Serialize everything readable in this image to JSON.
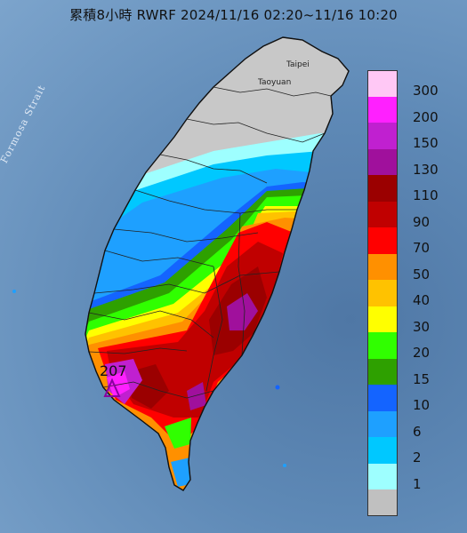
{
  "title": "累積8小時 RWRF 2024/11/16 02:20~11/16 10:20",
  "labels": {
    "strait": "Formosa Strait",
    "taipei": "Taipei",
    "taoyuan": "Taoyuan",
    "max_value": "207"
  },
  "legend": [
    {
      "label": "300",
      "color": "#ffc8f5"
    },
    {
      "label": "200",
      "color": "#ff20ff"
    },
    {
      "label": "150",
      "color": "#c020d0"
    },
    {
      "label": "130",
      "color": "#a0109c"
    },
    {
      "label": "110",
      "color": "#9b0000"
    },
    {
      "label": "90",
      "color": "#c00000"
    },
    {
      "label": "70",
      "color": "#ff0000"
    },
    {
      "label": "50",
      "color": "#ff9000"
    },
    {
      "label": "40",
      "color": "#ffc200"
    },
    {
      "label": "30",
      "color": "#ffff00"
    },
    {
      "label": "20",
      "color": "#30ff00"
    },
    {
      "label": "15",
      "color": "#2ea000"
    },
    {
      "label": "10",
      "color": "#1464ff"
    },
    {
      "label": "6",
      "color": "#1ea0ff"
    },
    {
      "label": "2",
      "color": "#00c8ff"
    },
    {
      "label": "1",
      "color": "#9effff"
    },
    {
      "label": "",
      "color": "#c0c0c0"
    }
  ]
}
